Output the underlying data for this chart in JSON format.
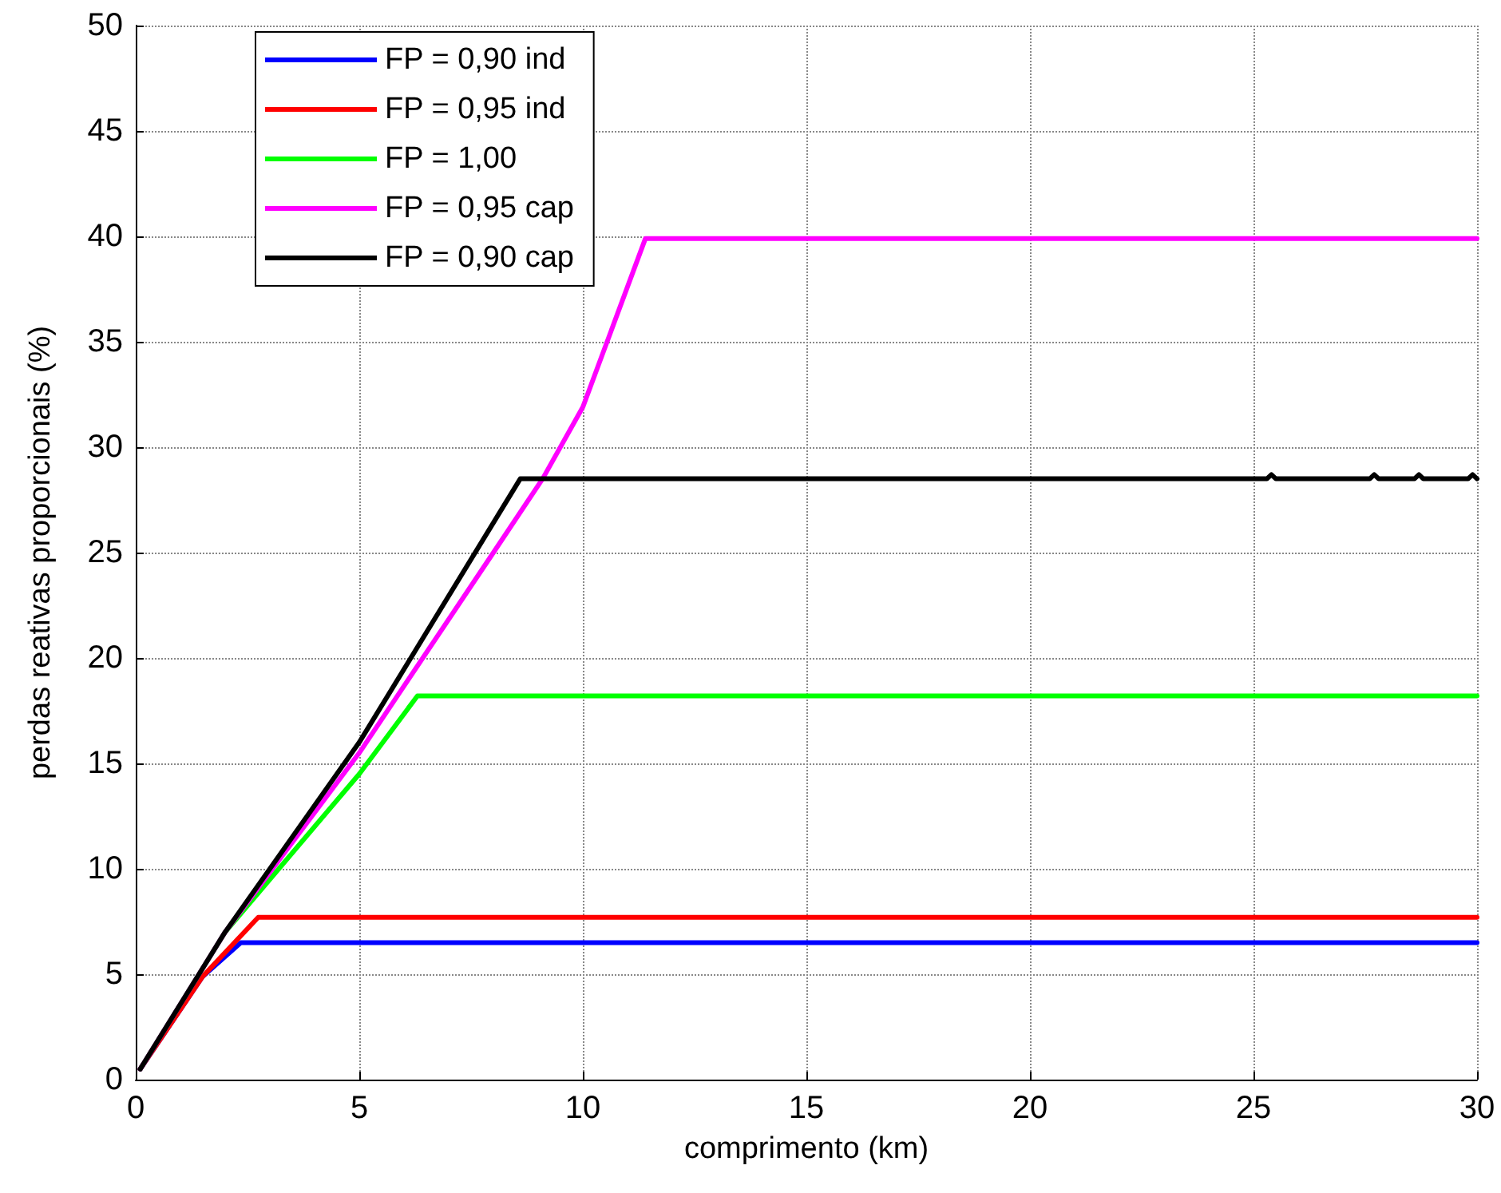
{
  "chart_data": {
    "type": "line",
    "xlabel": "comprimento (km)",
    "ylabel": "perdas reativas proporcionais (%)",
    "xlim": [
      0,
      30
    ],
    "xticks": [
      0,
      5,
      10,
      15,
      20,
      25,
      30
    ],
    "ylim": [
      0,
      50
    ],
    "yticks": [
      0,
      5,
      10,
      15,
      20,
      25,
      30,
      35,
      40,
      45,
      50
    ],
    "grid": true,
    "legend": "top left",
    "marker": "none",
    "line_style": "solid",
    "series": [
      {
        "name": "FP = 0,90 ind",
        "color": "#0000ff",
        "x": [
          0.1,
          1.5,
          2.35,
          30
        ],
        "values": [
          0.5,
          4.9,
          6.5,
          6.5
        ]
      },
      {
        "name": "FP = 0,95 ind",
        "color": "#ff0000",
        "x": [
          0.1,
          1.5,
          2.74,
          30
        ],
        "values": [
          0.5,
          4.9,
          7.7,
          7.7
        ]
      },
      {
        "name": "FP = 1,00",
        "color": "#00ff00",
        "x": [
          0.1,
          2,
          5,
          6.3,
          30
        ],
        "values": [
          0.5,
          7,
          14.5,
          18.2,
          18.2
        ]
      },
      {
        "name": "FP = 0,95 cap",
        "color": "#ff00ff",
        "x": [
          0.1,
          2,
          5,
          8,
          9.1,
          10,
          11.4,
          30
        ],
        "values": [
          0.5,
          7,
          15.5,
          25,
          28.5,
          31.9,
          39.9,
          39.9
        ]
      },
      {
        "name": "FP = 0,90 cap",
        "color": "#000000",
        "x": [
          0.1,
          2,
          5,
          8.6,
          25.3,
          25.4,
          25.5,
          27.6,
          27.7,
          27.8,
          28.6,
          28.7,
          28.8,
          29.8,
          29.9,
          30
        ],
        "values": [
          0.5,
          7,
          16,
          28.5,
          28.5,
          28.7,
          28.5,
          28.5,
          28.7,
          28.5,
          28.5,
          28.7,
          28.5,
          28.5,
          28.7,
          28.5
        ]
      }
    ]
  }
}
